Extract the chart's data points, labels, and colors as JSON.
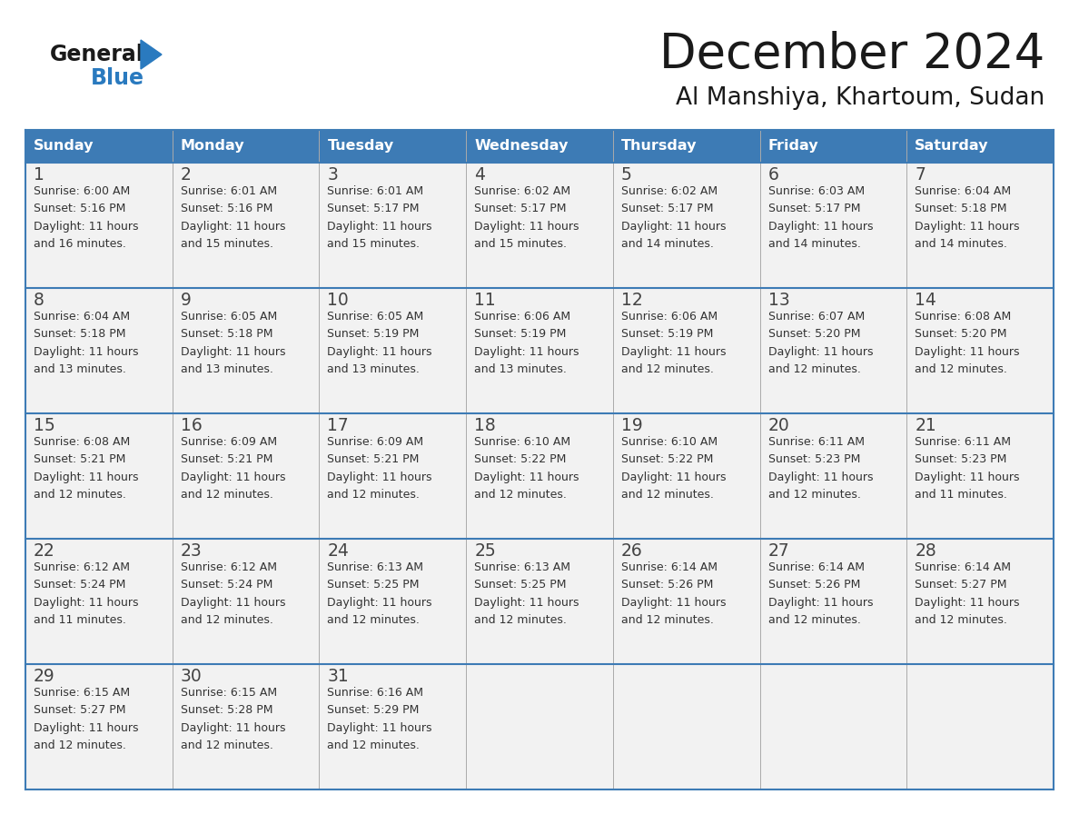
{
  "title": "December 2024",
  "subtitle": "Al Manshiya, Khartoum, Sudan",
  "days_of_week": [
    "Sunday",
    "Monday",
    "Tuesday",
    "Wednesday",
    "Thursday",
    "Friday",
    "Saturday"
  ],
  "header_bg": "#3d7bb5",
  "header_text": "#ffffff",
  "cell_bg": "#f2f2f2",
  "border_color": "#3d7bb5",
  "row_border_color": "#3d7bb5",
  "text_color": "#333333",
  "day_num_color": "#444444",
  "title_color": "#1a1a1a",
  "logo_general_color": "#1a1a1a",
  "logo_blue_color": "#2a7abf",
  "weeks": [
    [
      {
        "day": 1,
        "sunrise": "6:00 AM",
        "sunset": "5:16 PM",
        "daylight_hours": 11,
        "daylight_minutes": 16
      },
      {
        "day": 2,
        "sunrise": "6:01 AM",
        "sunset": "5:16 PM",
        "daylight_hours": 11,
        "daylight_minutes": 15
      },
      {
        "day": 3,
        "sunrise": "6:01 AM",
        "sunset": "5:17 PM",
        "daylight_hours": 11,
        "daylight_minutes": 15
      },
      {
        "day": 4,
        "sunrise": "6:02 AM",
        "sunset": "5:17 PM",
        "daylight_hours": 11,
        "daylight_minutes": 15
      },
      {
        "day": 5,
        "sunrise": "6:02 AM",
        "sunset": "5:17 PM",
        "daylight_hours": 11,
        "daylight_minutes": 14
      },
      {
        "day": 6,
        "sunrise": "6:03 AM",
        "sunset": "5:17 PM",
        "daylight_hours": 11,
        "daylight_minutes": 14
      },
      {
        "day": 7,
        "sunrise": "6:04 AM",
        "sunset": "5:18 PM",
        "daylight_hours": 11,
        "daylight_minutes": 14
      }
    ],
    [
      {
        "day": 8,
        "sunrise": "6:04 AM",
        "sunset": "5:18 PM",
        "daylight_hours": 11,
        "daylight_minutes": 13
      },
      {
        "day": 9,
        "sunrise": "6:05 AM",
        "sunset": "5:18 PM",
        "daylight_hours": 11,
        "daylight_minutes": 13
      },
      {
        "day": 10,
        "sunrise": "6:05 AM",
        "sunset": "5:19 PM",
        "daylight_hours": 11,
        "daylight_minutes": 13
      },
      {
        "day": 11,
        "sunrise": "6:06 AM",
        "sunset": "5:19 PM",
        "daylight_hours": 11,
        "daylight_minutes": 13
      },
      {
        "day": 12,
        "sunrise": "6:06 AM",
        "sunset": "5:19 PM",
        "daylight_hours": 11,
        "daylight_minutes": 12
      },
      {
        "day": 13,
        "sunrise": "6:07 AM",
        "sunset": "5:20 PM",
        "daylight_hours": 11,
        "daylight_minutes": 12
      },
      {
        "day": 14,
        "sunrise": "6:08 AM",
        "sunset": "5:20 PM",
        "daylight_hours": 11,
        "daylight_minutes": 12
      }
    ],
    [
      {
        "day": 15,
        "sunrise": "6:08 AM",
        "sunset": "5:21 PM",
        "daylight_hours": 11,
        "daylight_minutes": 12
      },
      {
        "day": 16,
        "sunrise": "6:09 AM",
        "sunset": "5:21 PM",
        "daylight_hours": 11,
        "daylight_minutes": 12
      },
      {
        "day": 17,
        "sunrise": "6:09 AM",
        "sunset": "5:21 PM",
        "daylight_hours": 11,
        "daylight_minutes": 12
      },
      {
        "day": 18,
        "sunrise": "6:10 AM",
        "sunset": "5:22 PM",
        "daylight_hours": 11,
        "daylight_minutes": 12
      },
      {
        "day": 19,
        "sunrise": "6:10 AM",
        "sunset": "5:22 PM",
        "daylight_hours": 11,
        "daylight_minutes": 12
      },
      {
        "day": 20,
        "sunrise": "6:11 AM",
        "sunset": "5:23 PM",
        "daylight_hours": 11,
        "daylight_minutes": 12
      },
      {
        "day": 21,
        "sunrise": "6:11 AM",
        "sunset": "5:23 PM",
        "daylight_hours": 11,
        "daylight_minutes": 11
      }
    ],
    [
      {
        "day": 22,
        "sunrise": "6:12 AM",
        "sunset": "5:24 PM",
        "daylight_hours": 11,
        "daylight_minutes": 11
      },
      {
        "day": 23,
        "sunrise": "6:12 AM",
        "sunset": "5:24 PM",
        "daylight_hours": 11,
        "daylight_minutes": 12
      },
      {
        "day": 24,
        "sunrise": "6:13 AM",
        "sunset": "5:25 PM",
        "daylight_hours": 11,
        "daylight_minutes": 12
      },
      {
        "day": 25,
        "sunrise": "6:13 AM",
        "sunset": "5:25 PM",
        "daylight_hours": 11,
        "daylight_minutes": 12
      },
      {
        "day": 26,
        "sunrise": "6:14 AM",
        "sunset": "5:26 PM",
        "daylight_hours": 11,
        "daylight_minutes": 12
      },
      {
        "day": 27,
        "sunrise": "6:14 AM",
        "sunset": "5:26 PM",
        "daylight_hours": 11,
        "daylight_minutes": 12
      },
      {
        "day": 28,
        "sunrise": "6:14 AM",
        "sunset": "5:27 PM",
        "daylight_hours": 11,
        "daylight_minutes": 12
      }
    ],
    [
      {
        "day": 29,
        "sunrise": "6:15 AM",
        "sunset": "5:27 PM",
        "daylight_hours": 11,
        "daylight_minutes": 12
      },
      {
        "day": 30,
        "sunrise": "6:15 AM",
        "sunset": "5:28 PM",
        "daylight_hours": 11,
        "daylight_minutes": 12
      },
      {
        "day": 31,
        "sunrise": "6:16 AM",
        "sunset": "5:29 PM",
        "daylight_hours": 11,
        "daylight_minutes": 12
      },
      null,
      null,
      null,
      null
    ]
  ]
}
